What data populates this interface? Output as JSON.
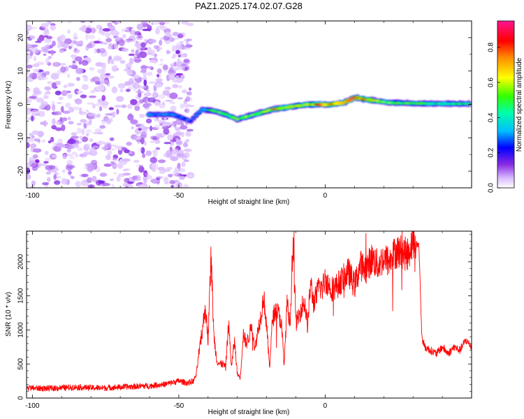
{
  "figure": {
    "title": "PAZ1.2025.174.02.07.G28"
  },
  "chart_data": [
    {
      "type": "heatmap",
      "xlabel": "Height of straight line (km)",
      "ylabel": "Frequency (Hz)",
      "xlim": [
        -102,
        50
      ],
      "ylim": [
        -25,
        25
      ],
      "xticks": [
        -100,
        -50,
        0
      ],
      "yticks": [
        -20,
        -10,
        0,
        10,
        20
      ],
      "colorbar": {
        "label": "Normalized spectral amplitude",
        "range": [
          0,
          0.95
        ],
        "ticks": [
          0.0,
          0.2,
          0.4,
          0.6,
          0.8
        ],
        "colormap": [
          "#ffffff",
          "#c9a6ff",
          "#8a2be2",
          "#0000ff",
          "#00bfff",
          "#00ff7f",
          "#7cfc00",
          "#ffff00",
          "#ff8c00",
          "#ff0000",
          "#ff1493"
        ]
      },
      "noise_region": {
        "x": [
          -102,
          -46
        ],
        "freq": [
          -25,
          25
        ],
        "level": 0.06
      },
      "ridge": [
        {
          "x": -60,
          "freq": -3,
          "amp": 0.35
        },
        {
          "x": -52,
          "freq": -3,
          "amp": 0.3
        },
        {
          "x": -46,
          "freq": -5,
          "amp": 0.3
        },
        {
          "x": -42,
          "freq": -1.5,
          "amp": 0.35
        },
        {
          "x": -38,
          "freq": -2,
          "amp": 0.5
        },
        {
          "x": -34,
          "freq": -3,
          "amp": 0.55
        },
        {
          "x": -30,
          "freq": -4.5,
          "amp": 0.55
        },
        {
          "x": -26,
          "freq": -3.5,
          "amp": 0.6
        },
        {
          "x": -22,
          "freq": -2.5,
          "amp": 0.6
        },
        {
          "x": -18,
          "freq": -1.5,
          "amp": 0.7
        },
        {
          "x": -14,
          "freq": -1,
          "amp": 0.7
        },
        {
          "x": -10,
          "freq": -0.5,
          "amp": 0.7
        },
        {
          "x": -6,
          "freq": 0,
          "amp": 0.7
        },
        {
          "x": -2,
          "freq": 0,
          "amp": 0.8
        },
        {
          "x": 2,
          "freq": 0,
          "amp": 0.8
        },
        {
          "x": 6,
          "freq": 0.5,
          "amp": 0.8
        },
        {
          "x": 10,
          "freq": 2,
          "amp": 0.85
        },
        {
          "x": 14,
          "freq": 1.5,
          "amp": 0.7
        },
        {
          "x": 18,
          "freq": 1,
          "amp": 0.6
        },
        {
          "x": 22,
          "freq": 0.5,
          "amp": 0.55
        },
        {
          "x": 30,
          "freq": 0.3,
          "amp": 0.5
        },
        {
          "x": 40,
          "freq": 0.2,
          "amp": 0.45
        },
        {
          "x": 50,
          "freq": 0.2,
          "amp": 0.45
        }
      ]
    },
    {
      "type": "line",
      "xlabel": "Height of straight line (km)",
      "ylabel": "SNR (10 * v/v)",
      "xlim": [
        -102,
        50
      ],
      "ylim": [
        0,
        2450
      ],
      "xticks": [
        -100,
        -50,
        0
      ],
      "yticks": [
        0,
        500,
        1000,
        1500,
        2000
      ],
      "series": [
        {
          "color": "#ff0000",
          "x": [
            -102,
            -95,
            -90,
            -85,
            -80,
            -75,
            -70,
            -65,
            -60,
            -55,
            -50,
            -47,
            -45,
            -44,
            -43,
            -42,
            -41,
            -40,
            -39,
            -38,
            -37,
            -36,
            -35,
            -34,
            -33,
            -32,
            -31,
            -30,
            -29,
            -28,
            -27,
            -26,
            -25,
            -24,
            -23,
            -22,
            -21,
            -20,
            -19,
            -18,
            -17,
            -16,
            -15,
            -14,
            -13,
            -12,
            -11,
            -10,
            -9,
            -8,
            -7,
            -6,
            -5,
            -4,
            -3,
            -2,
            -1,
            0,
            2,
            4,
            6,
            8,
            10,
            12,
            14,
            16,
            18,
            20,
            22,
            24,
            26,
            28,
            30,
            31,
            32,
            33,
            34,
            36,
            38,
            40,
            42,
            44,
            46,
            48,
            50
          ],
          "values": [
            150,
            140,
            150,
            160,
            150,
            150,
            160,
            170,
            180,
            200,
            250,
            220,
            250,
            350,
            700,
            950,
            1350,
            850,
            2100,
            900,
            550,
            500,
            500,
            450,
            1100,
            450,
            850,
            350,
            300,
            950,
            800,
            900,
            1100,
            700,
            1000,
            1200,
            1500,
            1050,
            450,
            1150,
            1300,
            1250,
            1100,
            500,
            1400,
            1050,
            2350,
            1100,
            1200,
            1350,
            1400,
            1050,
            1700,
            1400,
            1500,
            1650,
            1600,
            1750,
            1600,
            1650,
            1750,
            1850,
            1650,
            1950,
            1900,
            2050,
            1950,
            2050,
            2000,
            2150,
            2150,
            2100,
            2300,
            2250,
            2250,
            900,
            750,
            700,
            650,
            750,
            650,
            750,
            700,
            850,
            750
          ]
        }
      ]
    }
  ]
}
